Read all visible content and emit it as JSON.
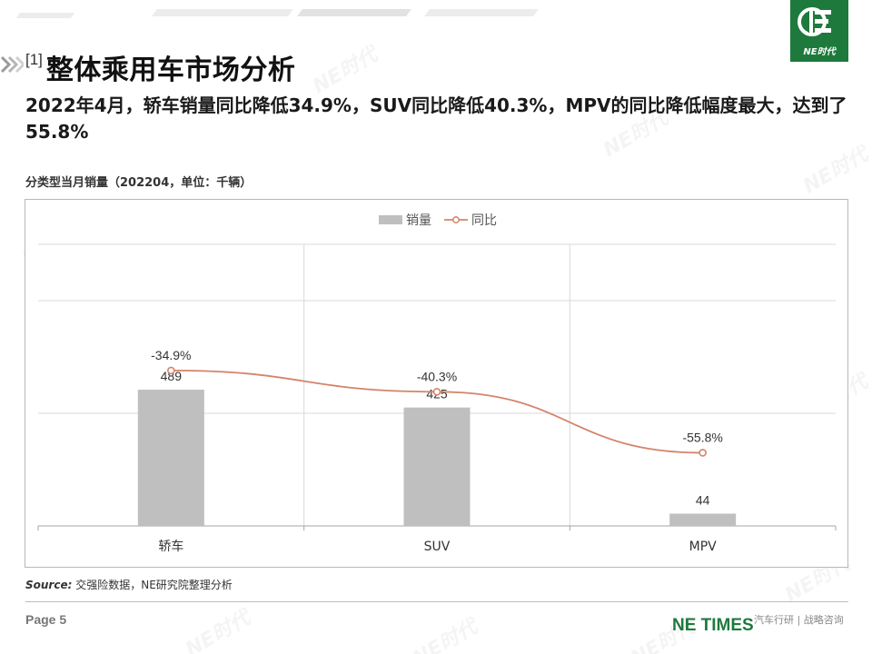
{
  "header": {
    "title_ref": "[1]",
    "title": "整体乘用车市场分析",
    "subtitle": "2022年4月，轿车销量同比降低34.9%，SUV同比降低40.3%，MPV的同比降低幅度最大，达到了55.8%"
  },
  "logo": {
    "text": "NE时代",
    "color": "#1e7a3c"
  },
  "watermark_text": "NE时代",
  "chart_caption": "分类型当月销量（202204，单位：千辆）",
  "chart_data": {
    "type": "bar",
    "categories": [
      "轿车",
      "SUV",
      "MPV"
    ],
    "series": [
      {
        "name": "销量",
        "type": "bar",
        "values": [
          489,
          425,
          44
        ],
        "labels": [
          "489",
          "425",
          "44"
        ],
        "color": "#bfbfbf"
      },
      {
        "name": "同比",
        "type": "line",
        "values": [
          -34.9,
          -40.3,
          -55.8
        ],
        "labels": [
          "-34.9%",
          "-40.3%",
          "-55.8%"
        ],
        "color": "#d4846a"
      }
    ],
    "legend": "top",
    "grid": true
  },
  "source": {
    "label": "Source:",
    "text": "交强险数据，NE研究院整理分析"
  },
  "footer": {
    "page": "Page 5",
    "brand": "NE TIMES",
    "tagline": "汽车行研 | 战略咨询"
  }
}
